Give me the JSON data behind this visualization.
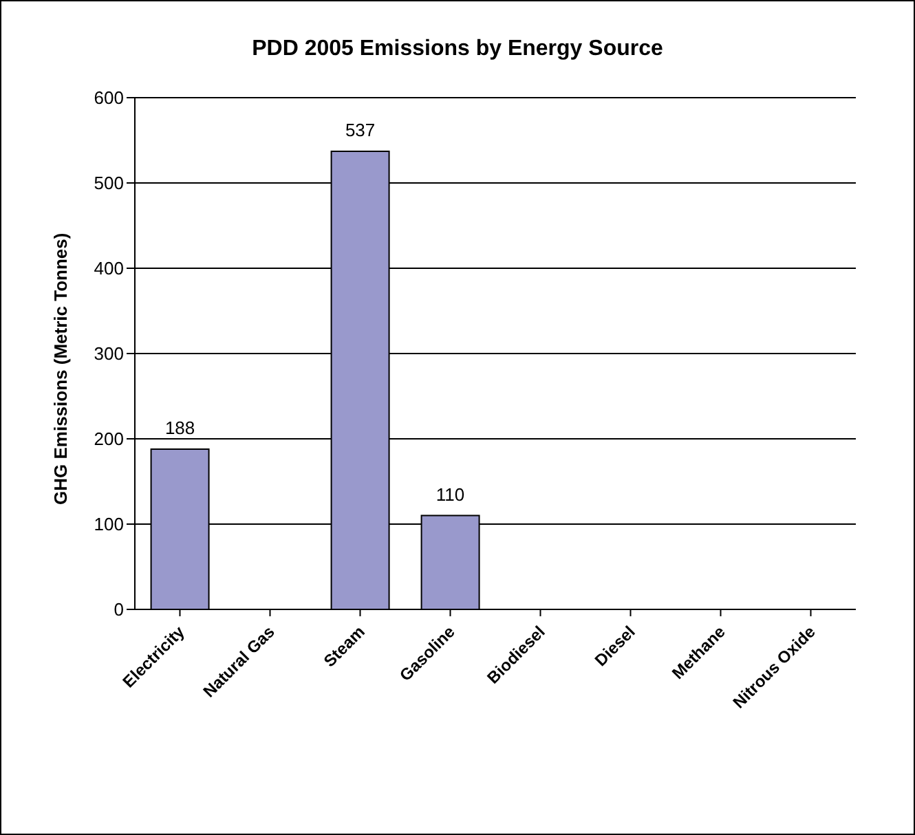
{
  "chart_data": {
    "type": "bar",
    "title": "PDD 2005 Emissions by Energy Source",
    "ylabel": "GHG Emissions (Metric Tonnes)",
    "categories": [
      "Electricity",
      "Natural Gas",
      "Steam",
      "Gasoline",
      "Biodiesel",
      "Diesel",
      "Methane",
      "Nitrous Oxide"
    ],
    "values": [
      188,
      0,
      537,
      110,
      0,
      0,
      0,
      0
    ],
    "value_labels": [
      "188",
      null,
      "537",
      "110",
      null,
      null,
      null,
      null
    ],
    "color": "#9999cc",
    "ylim": [
      0,
      600
    ],
    "yticks": [
      0,
      100,
      200,
      300,
      400,
      500,
      600
    ],
    "grid": "y"
  }
}
